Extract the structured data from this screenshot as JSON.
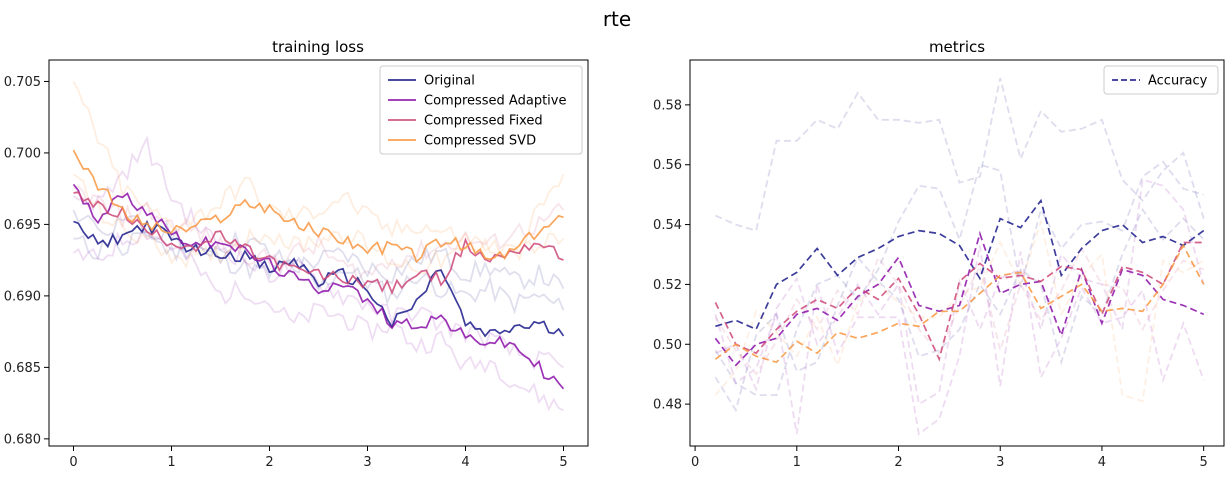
{
  "suptitle": "rte",
  "chart_data": [
    {
      "type": "line",
      "title": "training loss",
      "xlabel": "",
      "ylabel": "",
      "xlim": [
        -0.25,
        5.25
      ],
      "ylim": [
        0.6795,
        0.7065
      ],
      "xticks": [
        0,
        1,
        2,
        3,
        4,
        5
      ],
      "xtick_labels": [
        "0",
        "1",
        "2",
        "3",
        "4",
        "5"
      ],
      "yticks": [
        0.68,
        0.685,
        0.69,
        0.695,
        0.7,
        0.705
      ],
      "ytick_labels": [
        "0.680",
        "0.685",
        "0.690",
        "0.695",
        "0.700",
        "0.705"
      ],
      "grid": false,
      "legend_position": "top-right",
      "series": [
        {
          "name": "Original",
          "color": "#1a1a8a",
          "style": "solid",
          "opacity": 0.85,
          "x": [
            0,
            0.25,
            0.5,
            0.75,
            1,
            1.25,
            1.5,
            1.75,
            2,
            2.25,
            2.5,
            2.75,
            3,
            3.25,
            3.5,
            3.75,
            4,
            4.25,
            4.5,
            4.75,
            5
          ],
          "y": [
            0.6952,
            0.6935,
            0.6942,
            0.695,
            0.694,
            0.6932,
            0.693,
            0.6928,
            0.6918,
            0.6925,
            0.691,
            0.6915,
            0.6905,
            0.688,
            0.6895,
            0.692,
            0.688,
            0.6872,
            0.6878,
            0.688,
            0.6872
          ]
        },
        {
          "name": "Compressed Adaptive",
          "color": "#8b10a8",
          "style": "solid",
          "opacity": 0.85,
          "x": [
            0,
            0.25,
            0.5,
            0.75,
            1,
            1.25,
            1.5,
            1.75,
            2,
            2.25,
            2.5,
            2.75,
            3,
            3.25,
            3.5,
            3.75,
            4,
            4.25,
            4.5,
            4.75,
            5
          ],
          "y": [
            0.6978,
            0.6955,
            0.697,
            0.696,
            0.6945,
            0.6935,
            0.694,
            0.693,
            0.6922,
            0.6912,
            0.6905,
            0.691,
            0.6895,
            0.6882,
            0.688,
            0.6885,
            0.687,
            0.6868,
            0.6865,
            0.685,
            0.6835
          ]
        },
        {
          "name": "Compressed Fixed",
          "color": "#cc4778",
          "style": "solid",
          "opacity": 0.85,
          "x": [
            0,
            0.25,
            0.5,
            0.75,
            1,
            1.25,
            1.5,
            1.75,
            2,
            2.25,
            2.5,
            2.75,
            3,
            3.25,
            3.5,
            3.75,
            4,
            4.25,
            4.5,
            4.75,
            5
          ],
          "y": [
            0.6972,
            0.6962,
            0.6958,
            0.6945,
            0.6938,
            0.6935,
            0.6942,
            0.6932,
            0.6925,
            0.6918,
            0.6915,
            0.6912,
            0.691,
            0.6905,
            0.6915,
            0.6912,
            0.6935,
            0.6925,
            0.6932,
            0.6938,
            0.6925
          ]
        },
        {
          "name": "Compressed SVD",
          "color": "#f89540",
          "style": "solid",
          "opacity": 0.85,
          "x": [
            0,
            0.25,
            0.5,
            0.75,
            1,
            1.25,
            1.5,
            1.75,
            2,
            2.25,
            2.5,
            2.75,
            3,
            3.25,
            3.5,
            3.75,
            4,
            4.25,
            4.5,
            4.75,
            5
          ],
          "y": [
            0.7002,
            0.6978,
            0.6958,
            0.695,
            0.6945,
            0.6948,
            0.6955,
            0.6965,
            0.6962,
            0.695,
            0.6945,
            0.694,
            0.6932,
            0.6935,
            0.6928,
            0.6938,
            0.6935,
            0.6925,
            0.6932,
            0.6945,
            0.6955
          ]
        }
      ],
      "faint_runs": [
        {
          "color": "#1a1a8a",
          "opacity": 0.14,
          "y": [
            0.694,
            0.693,
            0.6955,
            0.6945,
            0.693,
            0.6935,
            0.6925,
            0.692,
            0.6915,
            0.6925,
            0.6905,
            0.692,
            0.691,
            0.69,
            0.6915,
            0.6905,
            0.69,
            0.6905,
            0.6895,
            0.69,
            0.689
          ]
        },
        {
          "color": "#1a1a8a",
          "opacity": 0.14,
          "y": [
            0.696,
            0.695,
            0.6935,
            0.694,
            0.6945,
            0.693,
            0.6935,
            0.694,
            0.693,
            0.692,
            0.6925,
            0.693,
            0.692,
            0.6915,
            0.6925,
            0.693,
            0.6915,
            0.692,
            0.691,
            0.6915,
            0.6905
          ]
        },
        {
          "color": "#8b10a8",
          "opacity": 0.14,
          "y": [
            0.693,
            0.6925,
            0.694,
            0.6945,
            0.6935,
            0.692,
            0.69,
            0.6905,
            0.6895,
            0.688,
            0.689,
            0.6885,
            0.6875,
            0.688,
            0.6865,
            0.687,
            0.685,
            0.6855,
            0.684,
            0.683,
            0.682
          ]
        },
        {
          "color": "#8b10a8",
          "opacity": 0.14,
          "y": [
            0.697,
            0.6965,
            0.6985,
            0.7005,
            0.697,
            0.695,
            0.6935,
            0.6925,
            0.6915,
            0.692,
            0.691,
            0.69,
            0.6895,
            0.6885,
            0.689,
            0.688,
            0.6875,
            0.687,
            0.686,
            0.6855,
            0.685
          ]
        },
        {
          "color": "#cc4778",
          "opacity": 0.14,
          "y": [
            0.6975,
            0.6965,
            0.6955,
            0.696,
            0.695,
            0.6945,
            0.6935,
            0.693,
            0.6925,
            0.693,
            0.6935,
            0.692,
            0.6915,
            0.6925,
            0.693,
            0.6935,
            0.694,
            0.6935,
            0.6945,
            0.695,
            0.696
          ]
        },
        {
          "color": "#f89540",
          "opacity": 0.16,
          "y": [
            0.705,
            0.701,
            0.6975,
            0.696,
            0.695,
            0.6955,
            0.6965,
            0.698,
            0.696,
            0.6955,
            0.696,
            0.697,
            0.6955,
            0.6945,
            0.695,
            0.6945,
            0.694,
            0.6935,
            0.693,
            0.696,
            0.6985
          ]
        },
        {
          "color": "#f89540",
          "opacity": 0.16,
          "y": [
            0.6985,
            0.696,
            0.6945,
            0.694,
            0.693,
            0.6925,
            0.693,
            0.694,
            0.6945,
            0.6935,
            0.694,
            0.6945,
            0.6935,
            0.6925,
            0.692,
            0.6925,
            0.693,
            0.6935,
            0.693,
            0.6935,
            0.694
          ]
        }
      ]
    },
    {
      "type": "line",
      "title": "metrics",
      "xlabel": "",
      "ylabel": "",
      "xlim": [
        -0.05,
        5.2
      ],
      "ylim": [
        0.466,
        0.595
      ],
      "xticks": [
        0,
        1,
        2,
        3,
        4,
        5
      ],
      "xtick_labels": [
        "0",
        "1",
        "2",
        "3",
        "4",
        "5"
      ],
      "yticks": [
        0.48,
        0.5,
        0.52,
        0.54,
        0.56,
        0.58
      ],
      "ytick_labels": [
        "0.48",
        "0.50",
        "0.52",
        "0.54",
        "0.56",
        "0.58"
      ],
      "grid": false,
      "legend_position": "top-right",
      "series": [
        {
          "name": "Accuracy",
          "color": "#1a1a8a",
          "style": "dashed",
          "opacity": 0.85,
          "x": [
            0.2,
            0.4,
            0.6,
            0.8,
            1.0,
            1.2,
            1.4,
            1.6,
            1.8,
            2.0,
            2.2,
            2.4,
            2.6,
            2.8,
            3.0,
            3.2,
            3.4,
            3.6,
            3.8,
            4.0,
            4.2,
            4.4,
            4.6,
            4.8,
            5.0
          ],
          "y": [
            0.506,
            0.508,
            0.505,
            0.52,
            0.524,
            0.532,
            0.523,
            0.529,
            0.532,
            0.536,
            0.538,
            0.537,
            0.533,
            0.522,
            0.542,
            0.539,
            0.548,
            0.523,
            0.532,
            0.538,
            0.54,
            0.534,
            0.536,
            0.533,
            0.538
          ]
        },
        {
          "name": "",
          "color": "#8b10a8",
          "style": "dashed",
          "opacity": 0.85,
          "x": [
            0.2,
            0.4,
            0.6,
            0.8,
            1.0,
            1.2,
            1.4,
            1.6,
            1.8,
            2.0,
            2.2,
            2.4,
            2.6,
            2.8,
            3.0,
            3.2,
            3.4,
            3.6,
            3.8,
            4.0,
            4.2,
            4.4,
            4.6,
            4.8,
            5.0
          ],
          "y": [
            0.502,
            0.493,
            0.5,
            0.502,
            0.51,
            0.512,
            0.508,
            0.516,
            0.52,
            0.529,
            0.513,
            0.511,
            0.513,
            0.537,
            0.517,
            0.52,
            0.521,
            0.503,
            0.525,
            0.507,
            0.525,
            0.523,
            0.515,
            0.513,
            0.51
          ]
        },
        {
          "name": "",
          "color": "#cc4778",
          "style": "dashed",
          "opacity": 0.85,
          "x": [
            0.2,
            0.4,
            0.6,
            0.8,
            1.0,
            1.2,
            1.4,
            1.6,
            1.8,
            2.0,
            2.2,
            2.4,
            2.6,
            2.8,
            3.0,
            3.2,
            3.4,
            3.6,
            3.8,
            4.0,
            4.2,
            4.4,
            4.6,
            4.8,
            5.0
          ],
          "y": [
            0.514,
            0.5,
            0.497,
            0.505,
            0.511,
            0.515,
            0.512,
            0.519,
            0.515,
            0.522,
            0.51,
            0.495,
            0.521,
            0.527,
            0.522,
            0.523,
            0.521,
            0.526,
            0.525,
            0.51,
            0.526,
            0.524,
            0.52,
            0.534,
            0.534
          ]
        },
        {
          "name": "",
          "color": "#f89540",
          "style": "dashed",
          "opacity": 0.85,
          "x": [
            0.2,
            0.4,
            0.6,
            0.8,
            1.0,
            1.2,
            1.4,
            1.6,
            1.8,
            2.0,
            2.2,
            2.4,
            2.6,
            2.8,
            3.0,
            3.2,
            3.4,
            3.6,
            3.8,
            4.0,
            4.2,
            4.4,
            4.6,
            4.8,
            5.0
          ],
          "y": [
            0.495,
            0.5,
            0.496,
            0.494,
            0.501,
            0.497,
            0.504,
            0.502,
            0.504,
            0.507,
            0.506,
            0.511,
            0.511,
            0.517,
            0.523,
            0.524,
            0.512,
            0.516,
            0.52,
            0.511,
            0.512,
            0.511,
            0.52,
            0.533,
            0.52
          ]
        }
      ],
      "faint_runs": [
        {
          "color": "#1a1a8a",
          "opacity": 0.15,
          "y": [
            0.543,
            0.54,
            0.538,
            0.568,
            0.568,
            0.575,
            0.572,
            0.584,
            0.575,
            0.575,
            0.574,
            0.575,
            0.554,
            0.556,
            0.589,
            0.562,
            0.578,
            0.571,
            0.572,
            0.575,
            0.555,
            0.548,
            0.558,
            0.564,
            0.542
          ]
        },
        {
          "color": "#1a1a8a",
          "opacity": 0.15,
          "y": [
            0.498,
            0.487,
            0.483,
            0.483,
            0.505,
            0.52,
            0.523,
            0.515,
            0.525,
            0.541,
            0.553,
            0.552,
            0.535,
            0.56,
            0.558,
            0.519,
            0.545,
            0.532,
            0.54,
            0.541,
            0.538,
            0.556,
            0.561,
            0.552,
            0.55
          ]
        },
        {
          "color": "#1a1a8a",
          "opacity": 0.15,
          "y": [
            0.489,
            0.478,
            0.503,
            0.51,
            0.491,
            0.494,
            0.513,
            0.529,
            0.521,
            0.515,
            0.496,
            0.498,
            0.505,
            0.52,
            0.51,
            0.525,
            0.52,
            0.494,
            0.516,
            0.51,
            0.53,
            0.545,
            0.535,
            0.542,
            0.535
          ]
        },
        {
          "color": "#8b10a8",
          "opacity": 0.15,
          "y": [
            0.51,
            0.487,
            0.492,
            0.51,
            0.47,
            0.52,
            0.497,
            0.509,
            0.509,
            0.509,
            0.47,
            0.475,
            0.496,
            0.533,
            0.486,
            0.531,
            0.489,
            0.502,
            0.519,
            0.507,
            0.509,
            0.518,
            0.488,
            0.507,
            0.488
          ]
        },
        {
          "color": "#8b10a8",
          "opacity": 0.15,
          "y": [
            0.497,
            0.5,
            0.485,
            0.512,
            0.522,
            0.5,
            0.509,
            0.52,
            0.51,
            0.52,
            0.48,
            0.484,
            0.521,
            0.505,
            0.522,
            0.525,
            0.505,
            0.53,
            0.522,
            0.52,
            0.505,
            0.555,
            0.553,
            0.545,
            0.52
          ]
        },
        {
          "color": "#cc4778",
          "opacity": 0.15,
          "y": [
            0.509,
            0.498,
            0.49,
            0.501,
            0.515,
            0.505,
            0.518,
            0.51,
            0.529,
            0.52,
            0.505,
            0.497,
            0.513,
            0.526,
            0.498,
            0.52,
            0.508,
            0.518,
            0.532,
            0.52,
            0.519,
            0.505,
            0.518,
            0.528,
            0.525
          ]
        },
        {
          "color": "#f89540",
          "opacity": 0.15,
          "y": [
            0.483,
            0.491,
            0.511,
            0.504,
            0.496,
            0.509,
            0.493,
            0.514,
            0.52,
            0.514,
            0.509,
            0.509,
            0.517,
            0.519,
            0.534,
            0.52,
            0.541,
            0.51,
            0.523,
            0.53,
            0.483,
            0.481,
            0.528,
            0.524,
            0.528
          ]
        }
      ]
    }
  ]
}
